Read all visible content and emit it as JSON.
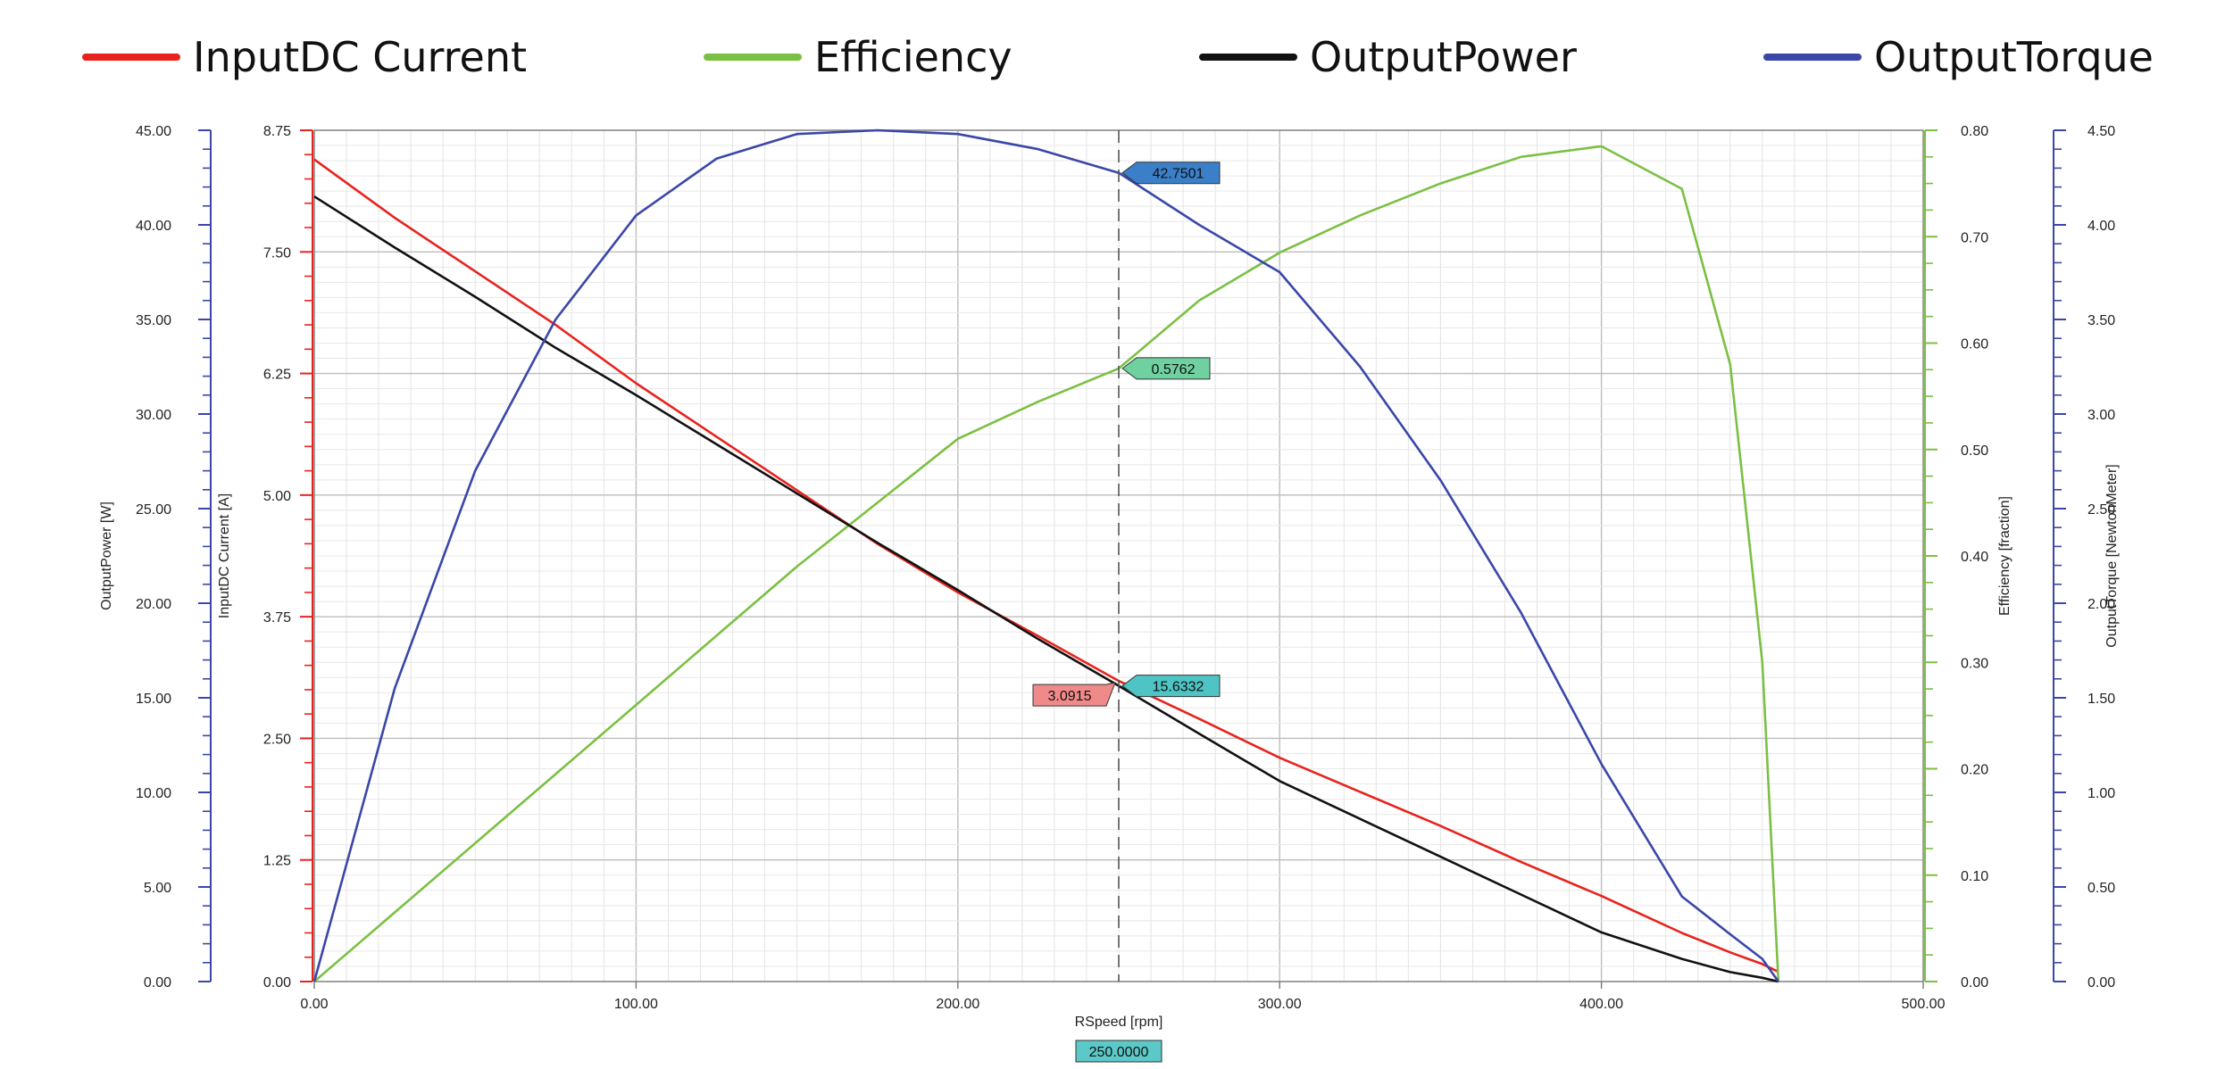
{
  "legend": [
    {
      "label": "InputDC Current",
      "color": "#e8231d"
    },
    {
      "label": "Efficiency",
      "color": "#7bc043"
    },
    {
      "label": "OutputPower",
      "color": "#111111"
    },
    {
      "label": "OutputTorque",
      "color": "#3a47a8"
    }
  ],
  "chart_data": {
    "type": "line",
    "x": [
      0,
      25,
      50,
      75,
      100,
      125,
      150,
      175,
      200,
      225,
      250,
      275,
      300,
      325,
      350,
      375,
      400,
      425,
      440,
      450,
      455
    ],
    "xlabel": "RSpeed [rpm]",
    "xlim": [
      0,
      500
    ],
    "xticks": [
      "0.00",
      "100.00",
      "200.00",
      "300.00",
      "400.00",
      "500.00"
    ],
    "axes": {
      "power": {
        "label": "OutputPower [W]",
        "range": [
          0,
          45
        ],
        "ticks": [
          "0.00",
          "5.00",
          "10.00",
          "15.00",
          "20.00",
          "25.00",
          "30.00",
          "35.00",
          "40.00",
          "45.00"
        ],
        "color": "#3a47a8"
      },
      "current": {
        "label": "InputDC Current [A]",
        "range": [
          0,
          8.75
        ],
        "ticks": [
          "0.00",
          "1.25",
          "2.50",
          "3.75",
          "5.00",
          "6.25",
          "7.50",
          "8.75"
        ],
        "color": "#e8231d"
      },
      "efficiency": {
        "label": "Efficiency [fraction]",
        "range": [
          0,
          0.8
        ],
        "ticks": [
          "0.00",
          "0.10",
          "0.20",
          "0.30",
          "0.40",
          "0.50",
          "0.60",
          "0.70",
          "0.80"
        ],
        "color": "#7bc043"
      },
      "torque": {
        "label": "OutputTorque [NewtonMeter]",
        "range": [
          0,
          4.5
        ],
        "ticks": [
          "0.00",
          "0.50",
          "1.00",
          "1.50",
          "2.00",
          "2.50",
          "3.00",
          "3.50",
          "4.00",
          "4.50"
        ],
        "color": "#3a47a8"
      }
    },
    "series": [
      {
        "name": "InputDC Current",
        "axis": "current",
        "color": "#e8231d",
        "values": [
          8.45,
          7.85,
          7.3,
          6.75,
          6.15,
          5.6,
          5.05,
          4.5,
          4.0,
          3.55,
          3.09,
          2.7,
          2.3,
          1.95,
          1.6,
          1.23,
          0.88,
          0.5,
          0.3,
          0.18,
          0.1
        ]
      },
      {
        "name": "Efficiency",
        "axis": "efficiency",
        "color": "#7bc043",
        "values": [
          0,
          0.065,
          0.13,
          0.195,
          0.26,
          0.325,
          0.39,
          0.45,
          0.51,
          0.545,
          0.5762,
          0.64,
          0.685,
          0.72,
          0.75,
          0.775,
          0.785,
          0.745,
          0.58,
          0.3,
          0
        ]
      },
      {
        "name": "OutputPower",
        "axis": "power",
        "color": "#111111",
        "values": [
          41.5,
          38.8,
          36.2,
          33.5,
          31.0,
          28.4,
          25.8,
          23.2,
          20.7,
          18.1,
          15.6332,
          13.1,
          10.6,
          8.6,
          6.6,
          4.6,
          2.6,
          1.2,
          0.5,
          0.2,
          0
        ]
      },
      {
        "name": "OutputTorque",
        "axis": "power",
        "color": "#3a47a8",
        "values": [
          0,
          15.5,
          27.0,
          35.0,
          40.5,
          43.5,
          44.8,
          45.0,
          44.8,
          44.0,
          42.7501,
          40.0,
          37.5,
          32.5,
          26.5,
          19.5,
          11.5,
          4.5,
          2.5,
          1.2,
          0
        ]
      }
    ],
    "cursor": {
      "x": 250,
      "label": "250.0000"
    },
    "annotations": [
      {
        "value": "42.7501",
        "series": "OutputTorque",
        "bg": "#3a7fc8"
      },
      {
        "value": "0.5762",
        "series": "Efficiency",
        "bg": "#6fd0a0"
      },
      {
        "value": "15.6332",
        "series": "OutputPower",
        "bg": "#4fc4c4"
      },
      {
        "value": "3.0915",
        "series": "InputDC Current",
        "bg": "#f08a8a"
      }
    ]
  }
}
